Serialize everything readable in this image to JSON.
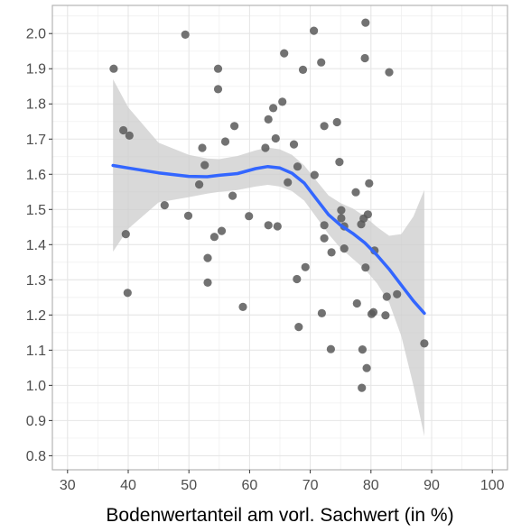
{
  "chart_data": {
    "type": "scatter",
    "title": "",
    "xlabel": "Bodenwertanteil am vorl. Sachwert (in %)",
    "ylabel": "",
    "xlim": [
      27.5,
      102.5
    ],
    "ylim": [
      0.76,
      2.08
    ],
    "x_ticks": [
      30,
      40,
      50,
      60,
      70,
      80,
      90,
      100
    ],
    "x_tick_labels": [
      "30",
      "40",
      "50",
      "60",
      "70",
      "80",
      "90",
      "100"
    ],
    "y_ticks": [
      0.8,
      0.9,
      1.0,
      1.1,
      1.2,
      1.3,
      1.4,
      1.5,
      1.6,
      1.7,
      1.8,
      1.9,
      2.0
    ],
    "y_tick_labels": [
      "0.8",
      "0.9",
      "1.0",
      "1.1",
      "1.2",
      "1.3",
      "1.4",
      "1.5",
      "1.6",
      "1.7",
      "1.8",
      "1.9",
      "2.0"
    ],
    "grid": true,
    "legend": "none",
    "colors": {
      "points": "#595959",
      "smooth": "#3366ff",
      "band": "#cccccc",
      "grid": "#e6e6e6",
      "frame": "#b3b3b3"
    },
    "points": [
      {
        "x": 37.6,
        "y": 1.9
      },
      {
        "x": 39.2,
        "y": 1.725
      },
      {
        "x": 39.6,
        "y": 1.43
      },
      {
        "x": 39.9,
        "y": 1.263
      },
      {
        "x": 40.2,
        "y": 1.71
      },
      {
        "x": 46.0,
        "y": 1.512
      },
      {
        "x": 49.4,
        "y": 1.997
      },
      {
        "x": 49.9,
        "y": 1.482
      },
      {
        "x": 51.7,
        "y": 1.571
      },
      {
        "x": 52.2,
        "y": 1.675
      },
      {
        "x": 52.6,
        "y": 1.626
      },
      {
        "x": 53.1,
        "y": 1.362
      },
      {
        "x": 53.1,
        "y": 1.292
      },
      {
        "x": 54.2,
        "y": 1.422
      },
      {
        "x": 54.8,
        "y": 1.9
      },
      {
        "x": 54.8,
        "y": 1.842
      },
      {
        "x": 55.4,
        "y": 1.439
      },
      {
        "x": 56.0,
        "y": 1.693
      },
      {
        "x": 57.2,
        "y": 1.539
      },
      {
        "x": 57.5,
        "y": 1.737
      },
      {
        "x": 58.9,
        "y": 1.223
      },
      {
        "x": 59.9,
        "y": 1.481
      },
      {
        "x": 62.6,
        "y": 1.675
      },
      {
        "x": 63.1,
        "y": 1.756
      },
      {
        "x": 63.1,
        "y": 1.455
      },
      {
        "x": 63.9,
        "y": 1.788
      },
      {
        "x": 64.3,
        "y": 1.702
      },
      {
        "x": 64.6,
        "y": 1.452
      },
      {
        "x": 65.4,
        "y": 1.806
      },
      {
        "x": 65.7,
        "y": 1.944
      },
      {
        "x": 66.3,
        "y": 1.577
      },
      {
        "x": 67.3,
        "y": 1.685
      },
      {
        "x": 67.8,
        "y": 1.302
      },
      {
        "x": 67.9,
        "y": 1.622
      },
      {
        "x": 68.1,
        "y": 1.166
      },
      {
        "x": 68.8,
        "y": 1.897
      },
      {
        "x": 69.2,
        "y": 1.336
      },
      {
        "x": 70.6,
        "y": 2.008
      },
      {
        "x": 70.7,
        "y": 1.598
      },
      {
        "x": 71.8,
        "y": 1.918
      },
      {
        "x": 71.9,
        "y": 1.205
      },
      {
        "x": 72.3,
        "y": 1.455
      },
      {
        "x": 72.3,
        "y": 1.418
      },
      {
        "x": 72.3,
        "y": 1.737
      },
      {
        "x": 73.4,
        "y": 1.103
      },
      {
        "x": 73.5,
        "y": 1.378
      },
      {
        "x": 74.4,
        "y": 1.748
      },
      {
        "x": 74.8,
        "y": 1.635
      },
      {
        "x": 75.1,
        "y": 1.498
      },
      {
        "x": 75.1,
        "y": 1.475
      },
      {
        "x": 75.6,
        "y": 1.452
      },
      {
        "x": 75.6,
        "y": 1.389
      },
      {
        "x": 77.5,
        "y": 1.549
      },
      {
        "x": 77.7,
        "y": 1.233
      },
      {
        "x": 78.4,
        "y": 1.458
      },
      {
        "x": 78.5,
        "y": 0.993
      },
      {
        "x": 78.6,
        "y": 1.102
      },
      {
        "x": 78.8,
        "y": 1.474
      },
      {
        "x": 79.0,
        "y": 1.93
      },
      {
        "x": 79.1,
        "y": 2.031
      },
      {
        "x": 79.1,
        "y": 1.335
      },
      {
        "x": 79.3,
        "y": 1.049
      },
      {
        "x": 79.5,
        "y": 1.486
      },
      {
        "x": 79.7,
        "y": 1.574
      },
      {
        "x": 80.1,
        "y": 1.203
      },
      {
        "x": 80.4,
        "y": 1.208
      },
      {
        "x": 80.6,
        "y": 1.383
      },
      {
        "x": 82.4,
        "y": 1.199
      },
      {
        "x": 82.6,
        "y": 1.252
      },
      {
        "x": 83.0,
        "y": 1.89
      },
      {
        "x": 84.3,
        "y": 1.259
      },
      {
        "x": 88.8,
        "y": 1.119
      }
    ],
    "smooth": {
      "method": "loess",
      "x": [
        37.5,
        40,
        45,
        50,
        53,
        55,
        58,
        61,
        63,
        65,
        67,
        69,
        71,
        73,
        75,
        77,
        79,
        81,
        83,
        85,
        87,
        88.8
      ],
      "y": [
        1.625,
        1.618,
        1.604,
        1.594,
        1.593,
        1.597,
        1.602,
        1.616,
        1.622,
        1.618,
        1.603,
        1.575,
        1.53,
        1.485,
        1.455,
        1.432,
        1.405,
        1.37,
        1.33,
        1.285,
        1.24,
        1.205
      ],
      "lower": [
        1.38,
        1.445,
        1.52,
        1.535,
        1.545,
        1.55,
        1.555,
        1.565,
        1.57,
        1.565,
        1.552,
        1.525,
        1.478,
        1.43,
        1.39,
        1.36,
        1.33,
        1.29,
        1.235,
        1.14,
        1.0,
        0.855
      ],
      "upper": [
        1.87,
        1.79,
        1.69,
        1.655,
        1.645,
        1.643,
        1.652,
        1.668,
        1.676,
        1.671,
        1.655,
        1.625,
        1.582,
        1.54,
        1.518,
        1.503,
        1.48,
        1.45,
        1.425,
        1.43,
        1.48,
        1.555
      ]
    }
  }
}
